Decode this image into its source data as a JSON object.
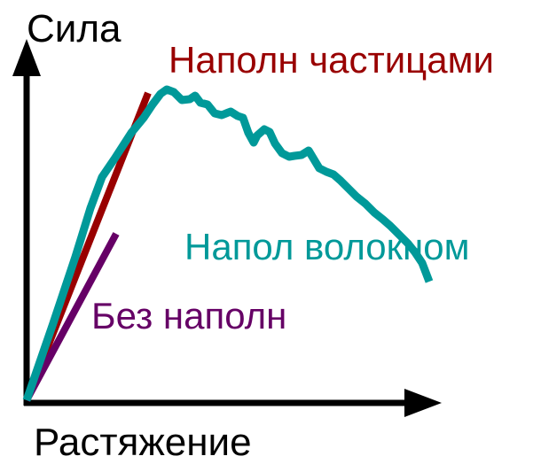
{
  "axes": {
    "y_label": "Сила",
    "x_label": "Растяжение"
  },
  "curves": [
    {
      "key": "particles",
      "label": "Наполн частицами",
      "color": "#990000"
    },
    {
      "key": "fiber",
      "label": "Напол волокном",
      "color": "#009999"
    },
    {
      "key": "unfilled",
      "label": "Без наполн",
      "color": "#660066"
    }
  ],
  "colors": {
    "axis": "#000000"
  }
}
